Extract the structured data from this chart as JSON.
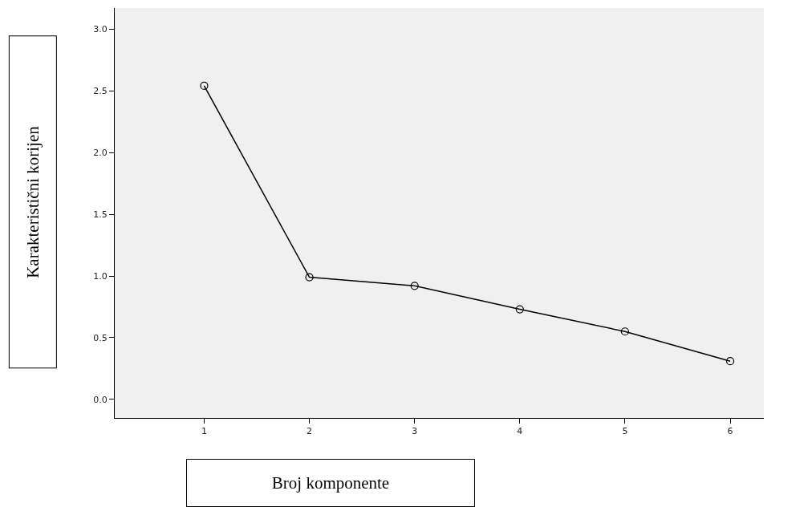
{
  "chart_data": {
    "type": "line",
    "xlabel": "Broj komponente",
    "ylabel": "Karakteristični korijen",
    "x": [
      1,
      2,
      3,
      4,
      5,
      6
    ],
    "series": [
      {
        "color": "#000000",
        "values": [
          2.54,
          0.99,
          0.92,
          0.73,
          0.55,
          0.31
        ]
      }
    ],
    "xlim": [
      0.15,
      6.32
    ],
    "xticks": [
      1,
      2,
      3,
      4,
      5,
      6
    ],
    "ylim": [
      -0.15,
      3.17
    ],
    "yticks": [
      {
        "value": 0,
        "label": "0.0"
      },
      {
        "value": 0.5,
        "label": "0.5"
      },
      {
        "value": 1,
        "label": "1.0"
      },
      {
        "value": 1.5,
        "label": "1.5"
      },
      {
        "value": 2,
        "label": "2.0"
      },
      {
        "value": 2.5,
        "label": "2.5"
      },
      {
        "value": 3,
        "label": "3.0"
      }
    ],
    "grid": false,
    "marker": "circle",
    "line_style": "solid"
  }
}
